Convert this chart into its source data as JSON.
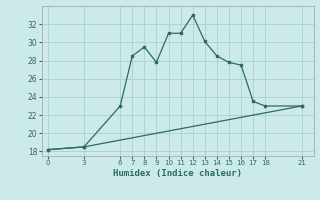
{
  "xlabel": "Humidex (Indice chaleur)",
  "line1_x": [
    0,
    3,
    6,
    7,
    8,
    9,
    10,
    11,
    12,
    13,
    14,
    15,
    16,
    17,
    18,
    21
  ],
  "line1_y": [
    18.2,
    18.5,
    23.0,
    28.5,
    29.5,
    27.8,
    31.0,
    31.0,
    33.0,
    30.1,
    28.5,
    27.8,
    27.5,
    23.5,
    23.0,
    23.0
  ],
  "line2_x": [
    0,
    3,
    21
  ],
  "line2_y": [
    18.2,
    18.5,
    23.0
  ],
  "line_color": "#2d6b5e",
  "bg_color": "#cdeaea",
  "grid_color": "#aad0d0",
  "ylim": [
    17.5,
    34
  ],
  "xlim": [
    -0.5,
    22
  ],
  "yticks": [
    18,
    20,
    22,
    24,
    26,
    28,
    30,
    32
  ],
  "xticks": [
    0,
    3,
    6,
    7,
    8,
    9,
    10,
    11,
    12,
    13,
    14,
    15,
    16,
    17,
    18,
    21
  ]
}
